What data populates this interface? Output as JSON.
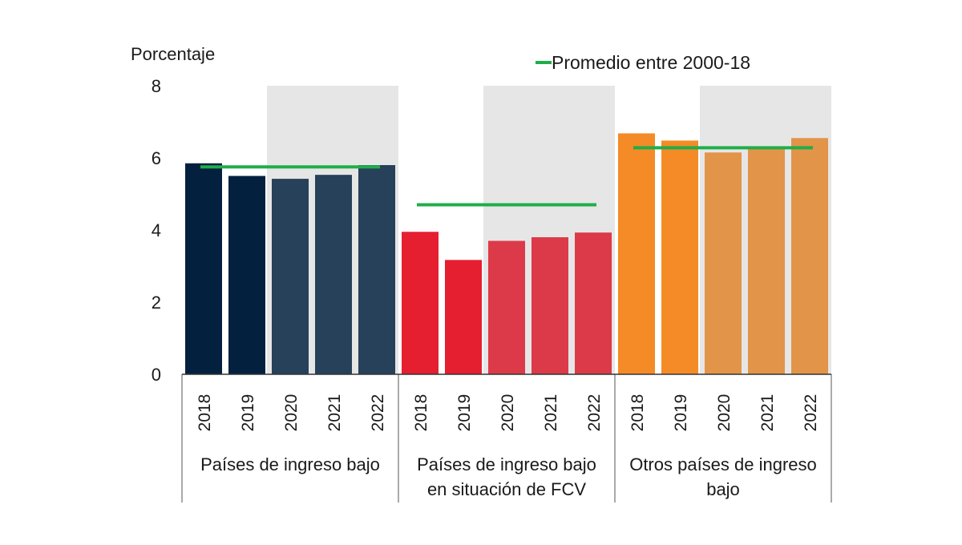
{
  "chart_data": {
    "type": "bar",
    "ylabel": "Porcentaje",
    "ylim": [
      0,
      8
    ],
    "yticks": [
      0,
      2,
      4,
      6,
      8
    ],
    "grid": false,
    "legend": {
      "label": "Promedio entre 2000-18",
      "position": "top-right",
      "color": "#1fae4a"
    },
    "shaded_years": [
      "2020",
      "2021",
      "2022"
    ],
    "shade_color": "#e6e6e6",
    "groups": [
      {
        "name": "Países de ingreso bajo",
        "name_lines": [
          "Países de ingreso bajo"
        ],
        "categories": [
          "2018",
          "2019",
          "2020",
          "2021",
          "2022"
        ],
        "values": [
          5.85,
          5.5,
          5.42,
          5.53,
          5.8
        ],
        "average": 5.75,
        "colors": [
          "#03203f",
          "#03203f",
          "#264159",
          "#264159",
          "#264159"
        ]
      },
      {
        "name": "Países de ingreso bajo en situación de FCV",
        "name_lines": [
          "Países de ingreso bajo",
          "en situación de FCV"
        ],
        "categories": [
          "2018",
          "2019",
          "2020",
          "2021",
          "2022"
        ],
        "values": [
          3.95,
          3.17,
          3.7,
          3.8,
          3.93
        ],
        "average": 4.7,
        "colors": [
          "#e51f30",
          "#e51f30",
          "#dc3a48",
          "#dc3a48",
          "#dc3a48"
        ]
      },
      {
        "name": "Otros países de ingreso bajo",
        "name_lines": [
          "Otros países de ingreso",
          "bajo"
        ],
        "categories": [
          "2018",
          "2019",
          "2020",
          "2021",
          "2022"
        ],
        "values": [
          6.68,
          6.48,
          6.15,
          6.27,
          6.55
        ],
        "average": 6.28,
        "colors": [
          "#f48b26",
          "#f48b26",
          "#e29449",
          "#e29449",
          "#e29449"
        ]
      }
    ]
  }
}
